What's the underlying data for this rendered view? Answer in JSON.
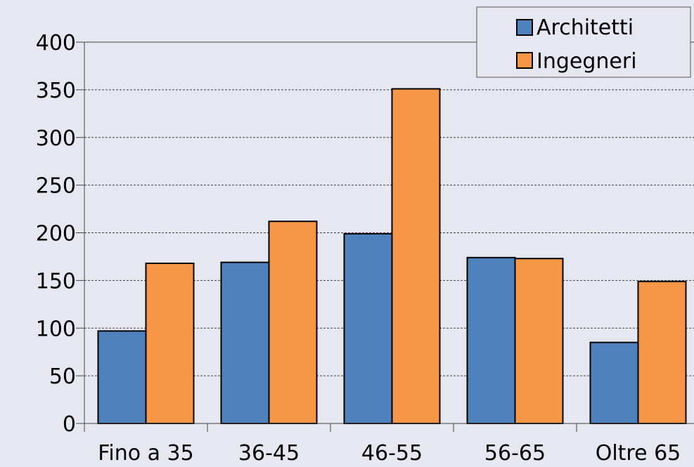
{
  "chart_data": {
    "type": "bar",
    "title": "",
    "xlabel": "",
    "ylabel": "",
    "categories": [
      "Fino a 35",
      "36-45",
      "46-55",
      "56-65",
      "Oltre 65"
    ],
    "series": [
      {
        "name": "Architetti",
        "color": "#4f81bd",
        "values": [
          97,
          169,
          199,
          174,
          85
        ]
      },
      {
        "name": "Ingegneri",
        "color": "#f79646",
        "values": [
          168,
          212,
          351,
          173,
          149
        ]
      }
    ],
    "ylim": [
      0,
      400
    ],
    "yticks": [
      0,
      50,
      100,
      150,
      200,
      250,
      300,
      350,
      400
    ],
    "grid": true,
    "legend_position": "top-right"
  }
}
